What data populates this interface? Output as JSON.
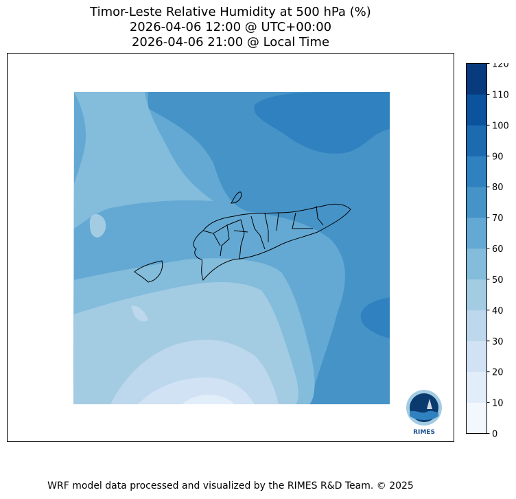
{
  "title": {
    "line1": "Timor-Leste Relative Humidity at 500 hPa (%)",
    "line2": "2026-04-06 12:00 @ UTC+00:00",
    "line3": "2026-04-06 21:00 @ Local Time"
  },
  "colorbar": {
    "ticks": [
      0,
      10,
      20,
      30,
      40,
      50,
      60,
      70,
      80,
      90,
      100,
      110,
      120
    ],
    "colors": [
      "#f2f8fd",
      "#e1edf8",
      "#d0e2f3",
      "#bdd7ec",
      "#a3cce3",
      "#84bcdb",
      "#63a9d3",
      "#4693c7",
      "#3081bf",
      "#1c6aaf",
      "#0b539d",
      "#083b7d"
    ]
  },
  "logo": {
    "label": "RIMES",
    "icon": "rimes-logo-icon"
  },
  "footer": "WRF model data processed and visualized by the RIMES R&D Team. © 2025"
}
